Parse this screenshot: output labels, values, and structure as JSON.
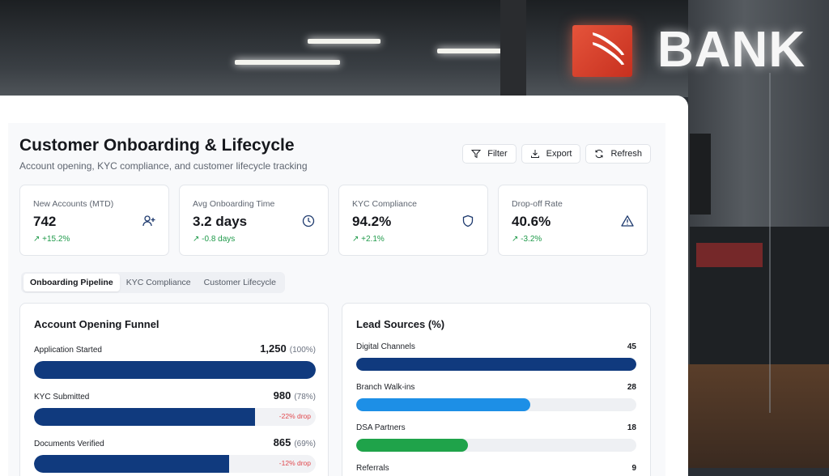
{
  "background": {
    "brand_text": "BANK",
    "accent": "#d93a26"
  },
  "header": {
    "title": "Customer Onboarding & Lifecycle",
    "subtitle": "Account opening, KYC compliance, and customer lifecycle tracking"
  },
  "actions": {
    "filter": "Filter",
    "export": "Export",
    "refresh": "Refresh"
  },
  "kpis": [
    {
      "label": "New Accounts (MTD)",
      "value": "742",
      "delta": "↗ +15.2%",
      "icon": "user-plus-icon"
    },
    {
      "label": "Avg Onboarding Time",
      "value": "3.2 days",
      "delta": "↗ -0.8 days",
      "icon": "clock-icon"
    },
    {
      "label": "KYC Compliance",
      "value": "94.2%",
      "delta": "↗ +2.1%",
      "icon": "shield-icon"
    },
    {
      "label": "Drop-off Rate",
      "value": "40.6%",
      "delta": "↗ -3.2%",
      "icon": "warning-icon"
    }
  ],
  "tabs": [
    {
      "label": "Onboarding Pipeline",
      "active": true
    },
    {
      "label": "KYC Compliance",
      "active": false
    },
    {
      "label": "Customer Lifecycle",
      "active": false
    }
  ],
  "funnel": {
    "title": "Account Opening Funnel",
    "rows": [
      {
        "label": "Application Started",
        "count": "1,250",
        "pct": "(100%)",
        "fraction": 1.0,
        "drop": ""
      },
      {
        "label": "KYC Submitted",
        "count": "980",
        "pct": "(78%)",
        "fraction": 0.784,
        "drop": "-22% drop"
      },
      {
        "label": "Documents Verified",
        "count": "865",
        "pct": "(69%)",
        "fraction": 0.692,
        "drop": "-12% drop"
      }
    ]
  },
  "lead_sources": {
    "title": "Lead Sources (%)",
    "max": 45,
    "rows": [
      {
        "label": "Digital Channels",
        "value": "45",
        "amount": 45,
        "color": "#103a7e"
      },
      {
        "label": "Branch Walk-ins",
        "value": "28",
        "amount": 28,
        "color": "#1d8fe6"
      },
      {
        "label": "DSA Partners",
        "value": "18",
        "amount": 18,
        "color": "#1fa34a"
      },
      {
        "label": "Referrals",
        "value": "9",
        "amount": 9,
        "color": "#f0a020"
      }
    ]
  }
}
